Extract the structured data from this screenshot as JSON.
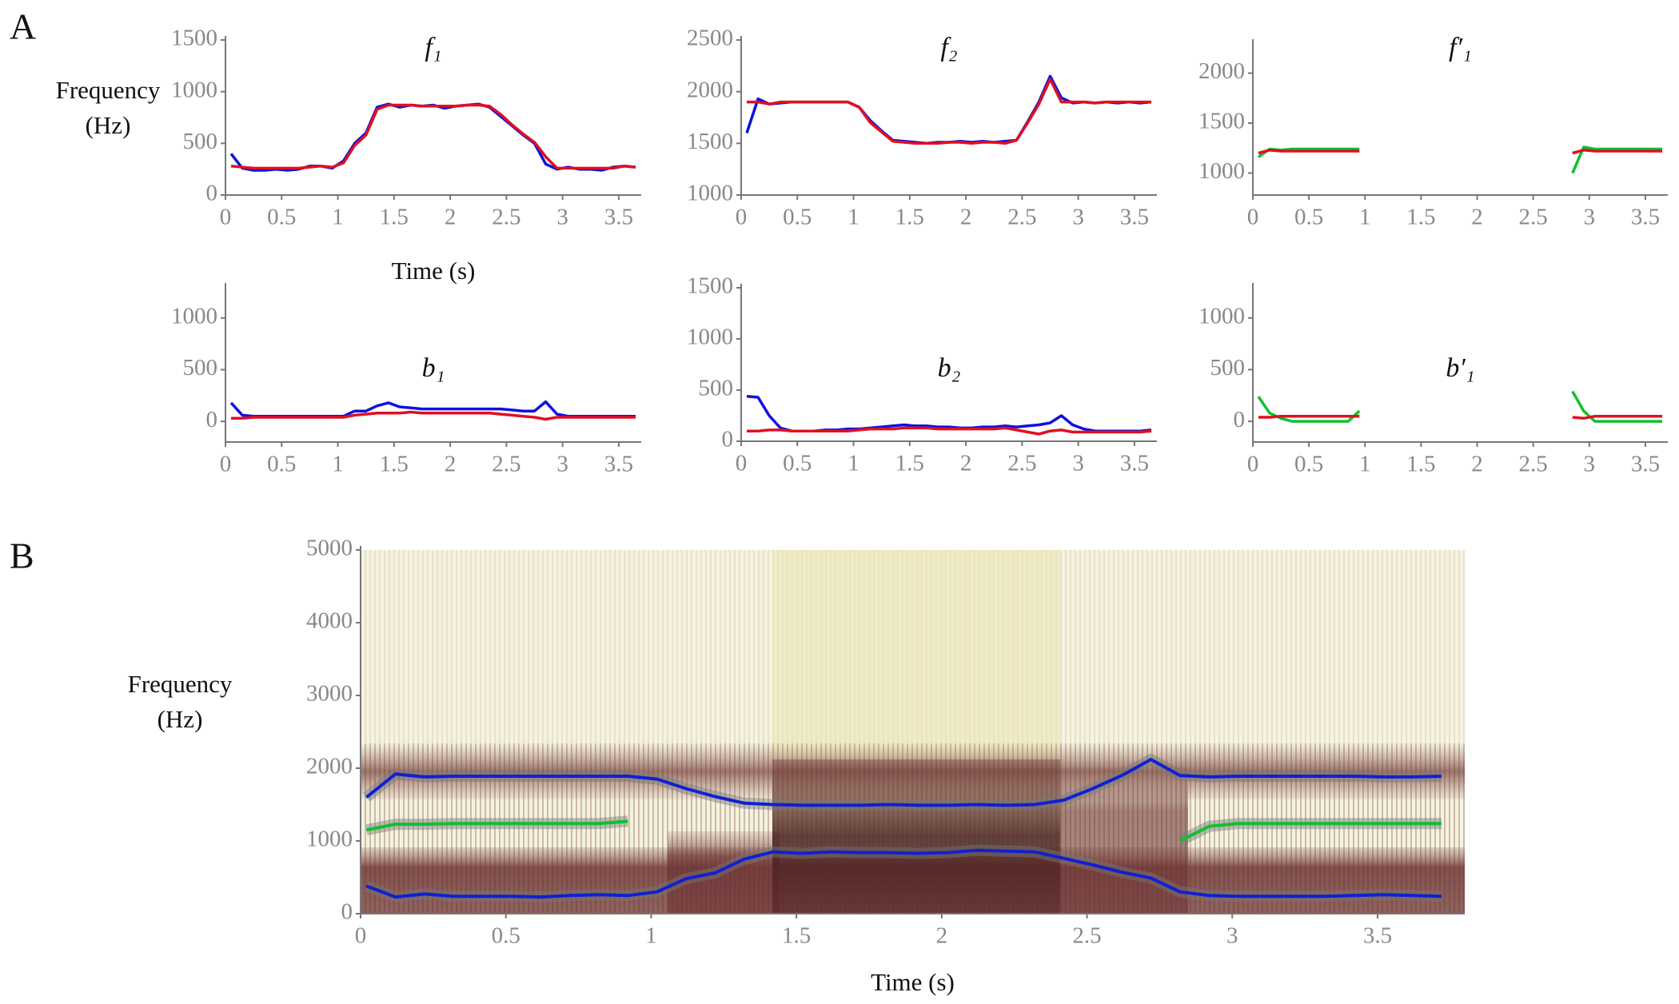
{
  "chart_data": [
    {
      "type": "line",
      "panel_label": "A",
      "title": "f₁",
      "xlabel": "Time (s)",
      "ylabel": "Frequency (Hz)",
      "x": [
        0.05,
        0.15,
        0.25,
        0.35,
        0.45,
        0.55,
        0.65,
        0.75,
        0.85,
        0.95,
        1.05,
        1.15,
        1.25,
        1.35,
        1.45,
        1.55,
        1.65,
        1.75,
        1.85,
        1.95,
        2.05,
        2.15,
        2.25,
        2.35,
        2.45,
        2.55,
        2.65,
        2.75,
        2.85,
        2.95,
        3.05,
        3.15,
        3.25,
        3.35,
        3.45,
        3.55,
        3.65
      ],
      "xlim": [
        0,
        3.7
      ],
      "xticks": [
        0,
        0.5,
        1,
        1.5,
        2,
        2.5,
        3,
        3.5
      ],
      "ylim": [
        0,
        1500
      ],
      "yticks": [
        0,
        500,
        1000,
        1500
      ],
      "series": [
        {
          "color": "#1010e0",
          "values": [
            400,
            260,
            240,
            240,
            250,
            240,
            250,
            280,
            280,
            260,
            330,
            500,
            600,
            850,
            880,
            850,
            870,
            860,
            870,
            840,
            860,
            870,
            880,
            850,
            760,
            670,
            580,
            500,
            300,
            250,
            270,
            250,
            250,
            240,
            270,
            280,
            270
          ]
        },
        {
          "color": "#e01020",
          "values": [
            280,
            270,
            260,
            260,
            260,
            260,
            260,
            270,
            280,
            270,
            310,
            480,
            580,
            830,
            870,
            870,
            870,
            860,
            860,
            860,
            860,
            870,
            870,
            860,
            780,
            680,
            590,
            510,
            370,
            260,
            260,
            260,
            260,
            260,
            260,
            280,
            270
          ]
        }
      ]
    },
    {
      "type": "line",
      "title": "f₂",
      "x": [
        0.05,
        0.15,
        0.25,
        0.35,
        0.45,
        0.55,
        0.65,
        0.75,
        0.85,
        0.95,
        1.05,
        1.15,
        1.25,
        1.35,
        1.45,
        1.55,
        1.65,
        1.75,
        1.85,
        1.95,
        2.05,
        2.15,
        2.25,
        2.35,
        2.45,
        2.55,
        2.65,
        2.75,
        2.85,
        2.95,
        3.05,
        3.15,
        3.25,
        3.35,
        3.45,
        3.55,
        3.65
      ],
      "xlim": [
        0,
        3.7
      ],
      "xticks": [
        0,
        0.5,
        1,
        1.5,
        2,
        2.5,
        3,
        3.5
      ],
      "ylim": [
        1000,
        2500
      ],
      "yticks": [
        1000,
        1500,
        2000,
        2500
      ],
      "series": [
        {
          "color": "#1010e0",
          "values": [
            1600,
            1930,
            1880,
            1890,
            1900,
            1900,
            1900,
            1900,
            1900,
            1900,
            1850,
            1720,
            1620,
            1530,
            1520,
            1510,
            1500,
            1510,
            1510,
            1520,
            1510,
            1520,
            1510,
            1520,
            1530,
            1710,
            1900,
            2150,
            1940,
            1890,
            1900,
            1890,
            1900,
            1890,
            1900,
            1890,
            1900
          ]
        },
        {
          "color": "#e01020",
          "values": [
            1900,
            1900,
            1880,
            1900,
            1900,
            1900,
            1900,
            1900,
            1900,
            1900,
            1850,
            1700,
            1610,
            1520,
            1510,
            1500,
            1500,
            1500,
            1510,
            1510,
            1500,
            1510,
            1510,
            1500,
            1530,
            1700,
            1880,
            2120,
            1900,
            1900,
            1900,
            1890,
            1900,
            1900,
            1900,
            1900,
            1900
          ]
        }
      ]
    },
    {
      "type": "line",
      "title": "f′₁",
      "x": [
        0.05,
        0.15,
        0.25,
        0.35,
        0.45,
        0.55,
        0.65,
        0.75,
        0.85,
        0.95,
        1.05,
        1.15,
        1.25,
        1.35,
        1.45,
        1.55,
        1.65,
        1.75,
        1.85,
        1.95,
        2.05,
        2.15,
        2.25,
        2.35,
        2.45,
        2.55,
        2.65,
        2.75,
        2.85,
        2.95,
        3.05,
        3.15,
        3.25,
        3.35,
        3.45,
        3.55,
        3.65
      ],
      "xlim": [
        0,
        3.7
      ],
      "xticks": [
        0,
        0.5,
        1,
        1.5,
        2,
        2.5,
        3,
        3.5
      ],
      "ylim": [
        780,
        2300
      ],
      "yticks": [
        1000,
        1500,
        2000
      ],
      "series": [
        {
          "color": "#10c030",
          "values": [
            1160,
            1240,
            1230,
            1240,
            1240,
            1240,
            1240,
            1240,
            1240,
            1240,
            null,
            null,
            null,
            null,
            null,
            null,
            null,
            null,
            null,
            null,
            null,
            null,
            null,
            null,
            null,
            null,
            null,
            null,
            1000,
            1260,
            1240,
            1240,
            1240,
            1240,
            1240,
            1240,
            1240
          ]
        },
        {
          "color": "#e01020",
          "values": [
            1200,
            1230,
            1220,
            1220,
            1220,
            1220,
            1220,
            1220,
            1220,
            1220,
            null,
            null,
            null,
            null,
            null,
            null,
            null,
            null,
            null,
            null,
            null,
            null,
            null,
            null,
            null,
            null,
            null,
            null,
            1200,
            1230,
            1220,
            1220,
            1220,
            1220,
            1220,
            1220,
            1220
          ]
        }
      ]
    },
    {
      "type": "line",
      "title": "b₁",
      "x": [
        0.05,
        0.15,
        0.25,
        0.35,
        0.45,
        0.55,
        0.65,
        0.75,
        0.85,
        0.95,
        1.05,
        1.15,
        1.25,
        1.35,
        1.45,
        1.55,
        1.65,
        1.75,
        1.85,
        1.95,
        2.05,
        2.15,
        2.25,
        2.35,
        2.45,
        2.55,
        2.65,
        2.75,
        2.85,
        2.95,
        3.05,
        3.15,
        3.25,
        3.35,
        3.45,
        3.55,
        3.65
      ],
      "xlim": [
        0,
        3.7
      ],
      "xticks": [
        0,
        0.5,
        1,
        1.5,
        2,
        2.5,
        3,
        3.5
      ],
      "ylim": [
        -200,
        1300
      ],
      "yticks": [
        0,
        500,
        1000
      ],
      "series": [
        {
          "color": "#1010e0",
          "values": [
            180,
            60,
            50,
            50,
            50,
            50,
            50,
            50,
            50,
            50,
            50,
            100,
            100,
            150,
            180,
            140,
            130,
            120,
            120,
            120,
            120,
            120,
            120,
            120,
            120,
            110,
            100,
            100,
            190,
            70,
            50,
            50,
            50,
            50,
            50,
            50,
            50
          ]
        },
        {
          "color": "#e01020",
          "values": [
            30,
            30,
            40,
            40,
            40,
            40,
            40,
            40,
            40,
            40,
            40,
            60,
            70,
            80,
            80,
            80,
            90,
            80,
            80,
            80,
            80,
            80,
            80,
            80,
            70,
            60,
            50,
            40,
            20,
            40,
            40,
            40,
            40,
            40,
            40,
            40,
            40
          ]
        }
      ]
    },
    {
      "type": "line",
      "title": "b₂",
      "x": [
        0.05,
        0.15,
        0.25,
        0.35,
        0.45,
        0.55,
        0.65,
        0.75,
        0.85,
        0.95,
        1.05,
        1.15,
        1.25,
        1.35,
        1.45,
        1.55,
        1.65,
        1.75,
        1.85,
        1.95,
        2.05,
        2.15,
        2.25,
        2.35,
        2.45,
        2.55,
        2.65,
        2.75,
        2.85,
        2.95,
        3.05,
        3.15,
        3.25,
        3.35,
        3.45,
        3.55,
        3.65
      ],
      "xlim": [
        0,
        3.7
      ],
      "xticks": [
        0,
        0.5,
        1,
        1.5,
        2,
        2.5,
        3,
        3.5
      ],
      "ylim": [
        0,
        1500
      ],
      "yticks": [
        0,
        500,
        1000,
        1500
      ],
      "series": [
        {
          "color": "#1010e0",
          "values": [
            440,
            430,
            250,
            130,
            100,
            100,
            100,
            110,
            110,
            120,
            120,
            130,
            140,
            150,
            160,
            150,
            150,
            140,
            140,
            130,
            130,
            140,
            140,
            150,
            140,
            150,
            160,
            180,
            250,
            160,
            120,
            100,
            100,
            100,
            100,
            100,
            110
          ]
        },
        {
          "color": "#e01020",
          "values": [
            100,
            100,
            110,
            110,
            100,
            100,
            100,
            100,
            100,
            100,
            110,
            120,
            120,
            120,
            130,
            130,
            130,
            120,
            120,
            120,
            120,
            120,
            120,
            130,
            110,
            90,
            70,
            100,
            110,
            90,
            90,
            90,
            90,
            90,
            90,
            90,
            100
          ]
        }
      ]
    },
    {
      "type": "line",
      "title": "b′₁",
      "x": [
        0.05,
        0.15,
        0.25,
        0.35,
        0.45,
        0.55,
        0.65,
        0.75,
        0.85,
        0.95,
        1.05,
        1.15,
        1.25,
        1.35,
        1.45,
        1.55,
        1.65,
        1.75,
        1.85,
        1.95,
        2.05,
        2.15,
        2.25,
        2.35,
        2.45,
        2.55,
        2.65,
        2.75,
        2.85,
        2.95,
        3.05,
        3.15,
        3.25,
        3.35,
        3.45,
        3.55,
        3.65
      ],
      "xlim": [
        0,
        3.7
      ],
      "xticks": [
        0,
        0.5,
        1,
        1.5,
        2,
        2.5,
        3,
        3.5
      ],
      "ylim": [
        -200,
        1300
      ],
      "yticks": [
        0,
        500,
        1000
      ],
      "series": [
        {
          "color": "#10c030",
          "values": [
            240,
            80,
            30,
            0,
            0,
            0,
            0,
            0,
            0,
            100,
            null,
            null,
            null,
            null,
            null,
            null,
            null,
            null,
            null,
            null,
            null,
            null,
            null,
            null,
            null,
            null,
            null,
            null,
            290,
            100,
            0,
            0,
            0,
            0,
            0,
            0,
            0
          ]
        },
        {
          "color": "#e01020",
          "values": [
            40,
            40,
            50,
            50,
            50,
            50,
            50,
            50,
            50,
            50,
            null,
            null,
            null,
            null,
            null,
            null,
            null,
            null,
            null,
            null,
            null,
            null,
            null,
            null,
            null,
            null,
            null,
            null,
            40,
            30,
            50,
            50,
            50,
            50,
            50,
            50,
            50
          ]
        }
      ]
    },
    {
      "type": "line",
      "panel_label": "B",
      "xlabel": "Time (s)",
      "ylabel": "Frequency (Hz)",
      "x": [
        0.02,
        0.12,
        0.22,
        0.32,
        0.42,
        0.52,
        0.62,
        0.72,
        0.82,
        0.92,
        1.02,
        1.12,
        1.22,
        1.32,
        1.42,
        1.52,
        1.62,
        1.72,
        1.82,
        1.92,
        2.02,
        2.12,
        2.22,
        2.32,
        2.42,
        2.52,
        2.62,
        2.72,
        2.82,
        2.92,
        3.02,
        3.12,
        3.22,
        3.32,
        3.42,
        3.52,
        3.62,
        3.72
      ],
      "xlim": [
        0,
        3.8
      ],
      "xticks": [
        0,
        0.5,
        1,
        1.5,
        2,
        2.5,
        3,
        3.5
      ],
      "ylim": [
        0,
        5000
      ],
      "yticks": [
        0,
        1000,
        2000,
        3000,
        4000,
        5000
      ],
      "series": [
        {
          "color": "#1020d0",
          "values": [
            380,
            230,
            270,
            240,
            240,
            240,
            230,
            250,
            260,
            250,
            300,
            480,
            560,
            750,
            850,
            830,
            850,
            840,
            840,
            830,
            840,
            870,
            860,
            850,
            760,
            670,
            570,
            490,
            300,
            250,
            240,
            240,
            240,
            240,
            250,
            260,
            250,
            240
          ]
        },
        {
          "color": "#1020d0",
          "values": [
            1600,
            1920,
            1880,
            1890,
            1890,
            1890,
            1890,
            1890,
            1890,
            1890,
            1850,
            1720,
            1610,
            1520,
            1500,
            1490,
            1490,
            1490,
            1500,
            1490,
            1490,
            1500,
            1490,
            1500,
            1560,
            1720,
            1900,
            2120,
            1900,
            1880,
            1890,
            1890,
            1890,
            1890,
            1890,
            1880,
            1880,
            1890
          ]
        },
        {
          "color": "#10c030",
          "values": [
            1150,
            1230,
            1230,
            1240,
            1240,
            1240,
            1240,
            1240,
            1240,
            1270,
            null,
            null,
            null,
            null,
            null,
            null,
            null,
            null,
            null,
            null,
            null,
            null,
            null,
            null,
            null,
            null,
            null,
            null,
            1000,
            1200,
            1240,
            1240,
            1240,
            1240,
            1240,
            1240,
            1240,
            1240
          ]
        }
      ]
    }
  ]
}
